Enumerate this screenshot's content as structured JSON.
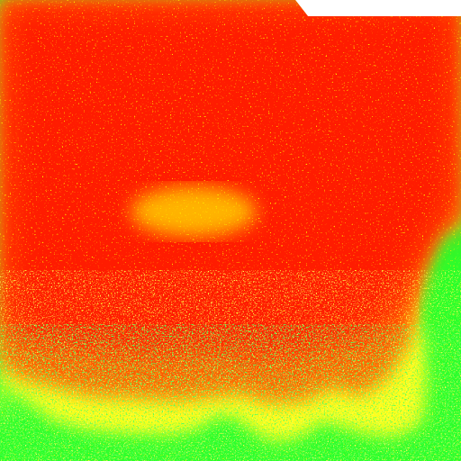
{
  "map": {
    "type": "raster-heatmap",
    "classes": [
      {
        "id": "high",
        "color": "#ff1a00"
      },
      {
        "id": "elevated",
        "color": "#ff6a00"
      },
      {
        "id": "medium",
        "color": "#ffb300"
      },
      {
        "id": "moderate",
        "color": "#ffff1f"
      },
      {
        "id": "low",
        "color": "#2bff2b"
      },
      {
        "id": "no-data",
        "color": "#ffffff"
      }
    ]
  }
}
